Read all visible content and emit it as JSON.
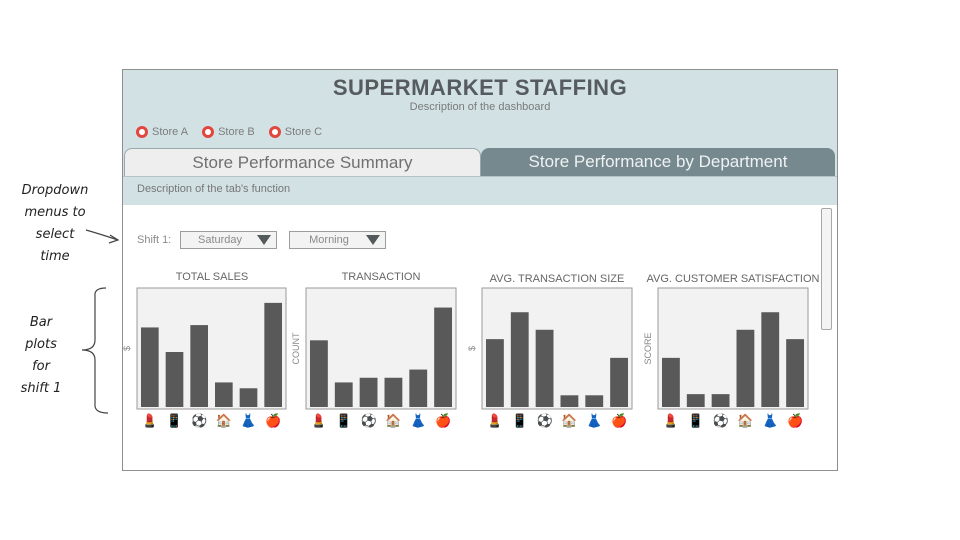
{
  "annotations": {
    "dropdown_lines": [
      "Dropdown",
      "menus to",
      "select",
      "time"
    ],
    "bars_lines": [
      "Bar",
      "plots",
      "for",
      "shift 1"
    ]
  },
  "header": {
    "title": "SUPERMARKET STAFFING",
    "subtitle": "Description of the dashboard"
  },
  "stores": [
    {
      "label": "Store A"
    },
    {
      "label": "Store B"
    },
    {
      "label": "Store C"
    }
  ],
  "tabs": [
    {
      "label": "Store Performance Summary"
    },
    {
      "label": "Store Performance by Department"
    }
  ],
  "tab_description": "Description of the tab's function",
  "controls": {
    "shift_label": "Shift 1:",
    "day_value": "Saturday",
    "time_value": "Morning"
  },
  "department_icons": [
    "lipstick",
    "phone",
    "ball",
    "home",
    "dress",
    "apple"
  ],
  "department_glyphs": [
    "💄",
    "📱",
    "⚽",
    "🏠",
    "👗",
    "🍎"
  ],
  "colors": {
    "bar": "#595959",
    "plot_bg": "#f2f2f2",
    "accent": "#e0473f",
    "header_bg": "#d2e1e4",
    "active_tab": "#76898f"
  },
  "chart_data": [
    {
      "type": "bar",
      "title": "TOTAL SALES",
      "ylabel": "$",
      "categories": [
        "lipstick",
        "phone",
        "ball",
        "home",
        "dress",
        "apple"
      ],
      "values": [
        0.68,
        0.47,
        0.7,
        0.21,
        0.16,
        0.89
      ]
    },
    {
      "type": "bar",
      "title": "TRANSACTION",
      "ylabel": "COUNT",
      "categories": [
        "lipstick",
        "phone",
        "ball",
        "home",
        "dress",
        "apple"
      ],
      "values": [
        0.57,
        0.21,
        0.25,
        0.25,
        0.32,
        0.85
      ]
    },
    {
      "type": "bar",
      "title": "AVG. TRANSACTION SIZE",
      "ylabel": "$",
      "categories": [
        "lipstick",
        "phone",
        "ball",
        "home",
        "dress",
        "apple"
      ],
      "values": [
        0.58,
        0.81,
        0.66,
        0.1,
        0.1,
        0.42
      ]
    },
    {
      "type": "bar",
      "title": "AVG. CUSTOMER SATISFACTION",
      "ylabel": "SCORE",
      "categories": [
        "lipstick",
        "phone",
        "ball",
        "home",
        "dress",
        "apple"
      ],
      "values": [
        0.42,
        0.11,
        0.11,
        0.66,
        0.81,
        0.58
      ]
    }
  ]
}
